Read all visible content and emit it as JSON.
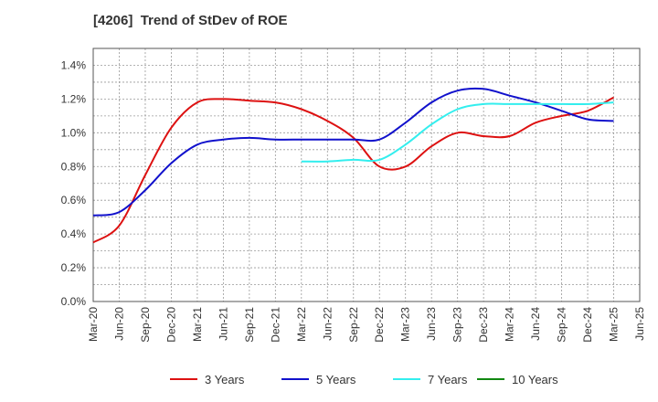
{
  "chart_data": {
    "type": "line",
    "title": "[4206]  Trend of StDev of ROE",
    "x_labels": [
      "Mar-20",
      "Jun-20",
      "Sep-20",
      "Dec-20",
      "Mar-21",
      "Jun-21",
      "Sep-21",
      "Dec-21",
      "Mar-22",
      "Jun-22",
      "Sep-22",
      "Dec-22",
      "Mar-23",
      "Jun-23",
      "Sep-23",
      "Dec-23",
      "Mar-24",
      "Jun-24",
      "Sep-24",
      "Dec-24",
      "Mar-25",
      "Jun-25"
    ],
    "y_ticks": [
      "0.0%",
      "0.2%",
      "0.4%",
      "0.6%",
      "0.8%",
      "1.0%",
      "1.2%",
      "1.4%"
    ],
    "ylim": [
      0,
      1.5
    ],
    "y_unit": "%",
    "grid": true,
    "legend_position": "bottom",
    "series": [
      {
        "name": "3 Years",
        "color": "#dd1111",
        "start_index": 0,
        "values": [
          0.35,
          0.45,
          0.75,
          1.03,
          1.18,
          1.2,
          1.19,
          1.18,
          1.14,
          1.07,
          0.97,
          0.8,
          0.8,
          0.92,
          1.0,
          0.98,
          0.98,
          1.06,
          1.1,
          1.13,
          1.21
        ]
      },
      {
        "name": "5 Years",
        "color": "#1111cc",
        "start_index": 0,
        "values": [
          0.51,
          0.53,
          0.66,
          0.82,
          0.93,
          0.96,
          0.97,
          0.96,
          0.96,
          0.96,
          0.96,
          0.96,
          1.06,
          1.18,
          1.25,
          1.26,
          1.22,
          1.18,
          1.13,
          1.08,
          1.07
        ]
      },
      {
        "name": "7 Years",
        "color": "#33eeee",
        "start_index": 8,
        "values": [
          0.83,
          0.83,
          0.84,
          0.84,
          0.93,
          1.05,
          1.14,
          1.17,
          1.17,
          1.17,
          1.17,
          1.17,
          1.18
        ]
      },
      {
        "name": "10 Years",
        "color": "#118811",
        "start_index": 0,
        "values": []
      }
    ]
  }
}
